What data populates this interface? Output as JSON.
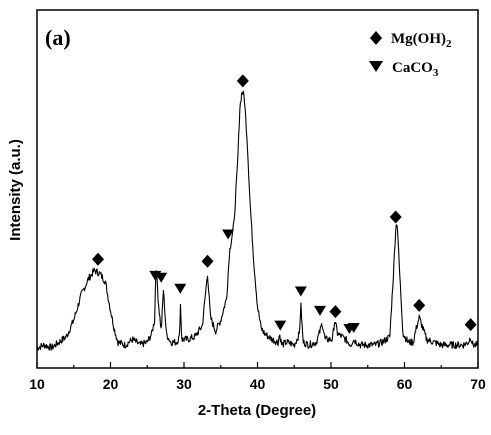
{
  "chart_data": {
    "type": "line",
    "panel_label": "(a)",
    "xlabel": "2-Theta (Degree)",
    "ylabel": "Intensity (a.u.)",
    "xlim": [
      10,
      70
    ],
    "x_ticks": [
      10,
      20,
      30,
      40,
      50,
      60,
      70
    ],
    "y_ticks_shown": false,
    "grid": false,
    "legend_position": "top-right",
    "series": [
      {
        "color": "#000000",
        "points": [
          [
            10.0,
            3
          ],
          [
            11.0,
            4
          ],
          [
            12.0,
            3
          ],
          [
            13.0,
            5
          ],
          [
            14.0,
            7
          ],
          [
            15.0,
            13
          ],
          [
            16.0,
            22
          ],
          [
            17.0,
            28
          ],
          [
            17.8,
            31
          ],
          [
            18.5,
            30
          ],
          [
            19.3,
            27
          ],
          [
            19.9,
            18
          ],
          [
            20.5,
            10
          ],
          [
            21.0,
            5
          ],
          [
            22.0,
            4
          ],
          [
            23.0,
            6
          ],
          [
            24.0,
            4
          ],
          [
            25.0,
            5
          ],
          [
            25.6,
            8
          ],
          [
            26.0,
            13
          ],
          [
            26.2,
            34
          ],
          [
            26.5,
            20
          ],
          [
            26.9,
            9
          ],
          [
            27.2,
            24
          ],
          [
            27.6,
            8
          ],
          [
            28.2,
            5
          ],
          [
            29.0,
            5
          ],
          [
            29.4,
            7
          ],
          [
            29.5,
            20
          ],
          [
            29.7,
            6
          ],
          [
            30.5,
            6
          ],
          [
            31.5,
            7
          ],
          [
            32.5,
            11
          ],
          [
            33.2,
            30
          ],
          [
            33.6,
            14
          ],
          [
            34.3,
            9
          ],
          [
            35.0,
            13
          ],
          [
            35.8,
            21
          ],
          [
            36.2,
            38
          ],
          [
            36.8,
            48
          ],
          [
            37.3,
            70
          ],
          [
            37.6,
            90
          ],
          [
            37.9,
            96
          ],
          [
            38.2,
            94
          ],
          [
            38.6,
            78
          ],
          [
            39.0,
            55
          ],
          [
            39.5,
            34
          ],
          [
            40.0,
            18
          ],
          [
            40.5,
            10
          ],
          [
            41.0,
            8
          ],
          [
            42.0,
            6
          ],
          [
            42.8,
            5
          ],
          [
            43.0,
            8
          ],
          [
            43.3,
            4
          ],
          [
            44.0,
            5
          ],
          [
            45.0,
            4
          ],
          [
            45.7,
            8
          ],
          [
            45.9,
            19
          ],
          [
            46.2,
            5
          ],
          [
            47.0,
            4
          ],
          [
            48.0,
            5
          ],
          [
            48.5,
            9
          ],
          [
            48.8,
            12
          ],
          [
            49.2,
            6
          ],
          [
            50.2,
            6
          ],
          [
            50.5,
            13
          ],
          [
            50.9,
            8
          ],
          [
            51.5,
            7
          ],
          [
            52.0,
            6
          ],
          [
            52.7,
            4
          ],
          [
            53.0,
            6
          ],
          [
            54.0,
            4
          ],
          [
            55.0,
            4
          ],
          [
            56.0,
            4
          ],
          [
            57.0,
            5
          ],
          [
            58.0,
            7
          ],
          [
            58.5,
            30
          ],
          [
            58.8,
            46
          ],
          [
            59.0,
            49
          ],
          [
            59.3,
            32
          ],
          [
            59.8,
            8
          ],
          [
            60.5,
            5
          ],
          [
            61.2,
            5
          ],
          [
            61.5,
            9
          ],
          [
            62.0,
            14
          ],
          [
            62.5,
            10
          ],
          [
            63.0,
            6
          ],
          [
            64.0,
            5
          ],
          [
            65.0,
            4
          ],
          [
            66.0,
            4
          ],
          [
            67.0,
            4
          ],
          [
            68.0,
            4
          ],
          [
            68.7,
            5
          ],
          [
            69.0,
            7
          ],
          [
            69.3,
            4
          ],
          [
            70.0,
            4
          ]
        ]
      }
    ],
    "legend": [
      {
        "marker": "diamond",
        "label": "Mg(OH)",
        "subscript": "2"
      },
      {
        "marker": "triangle-down",
        "label": "CaCO",
        "subscript": "3"
      }
    ],
    "annotations": [
      {
        "marker": "diamond",
        "x": 18.3
      },
      {
        "marker": "diamond",
        "x": 33.2
      },
      {
        "marker": "diamond",
        "x": 38.0
      },
      {
        "marker": "diamond",
        "x": 50.6
      },
      {
        "marker": "diamond",
        "x": 58.8
      },
      {
        "marker": "diamond",
        "x": 62.0
      },
      {
        "marker": "diamond",
        "x": 69.0
      },
      {
        "marker": "triangle-down",
        "x": 26.1
      },
      {
        "marker": "triangle-down",
        "x": 26.9
      },
      {
        "marker": "triangle-down",
        "x": 29.5
      },
      {
        "marker": "triangle-down",
        "x": 36.0
      },
      {
        "marker": "triangle-down",
        "x": 43.1
      },
      {
        "marker": "triangle-down",
        "x": 45.9
      },
      {
        "marker": "triangle-down",
        "x": 48.5
      },
      {
        "marker": "triangle-down",
        "x": 52.5
      },
      {
        "marker": "triangle-down",
        "x": 53.1
      }
    ]
  }
}
